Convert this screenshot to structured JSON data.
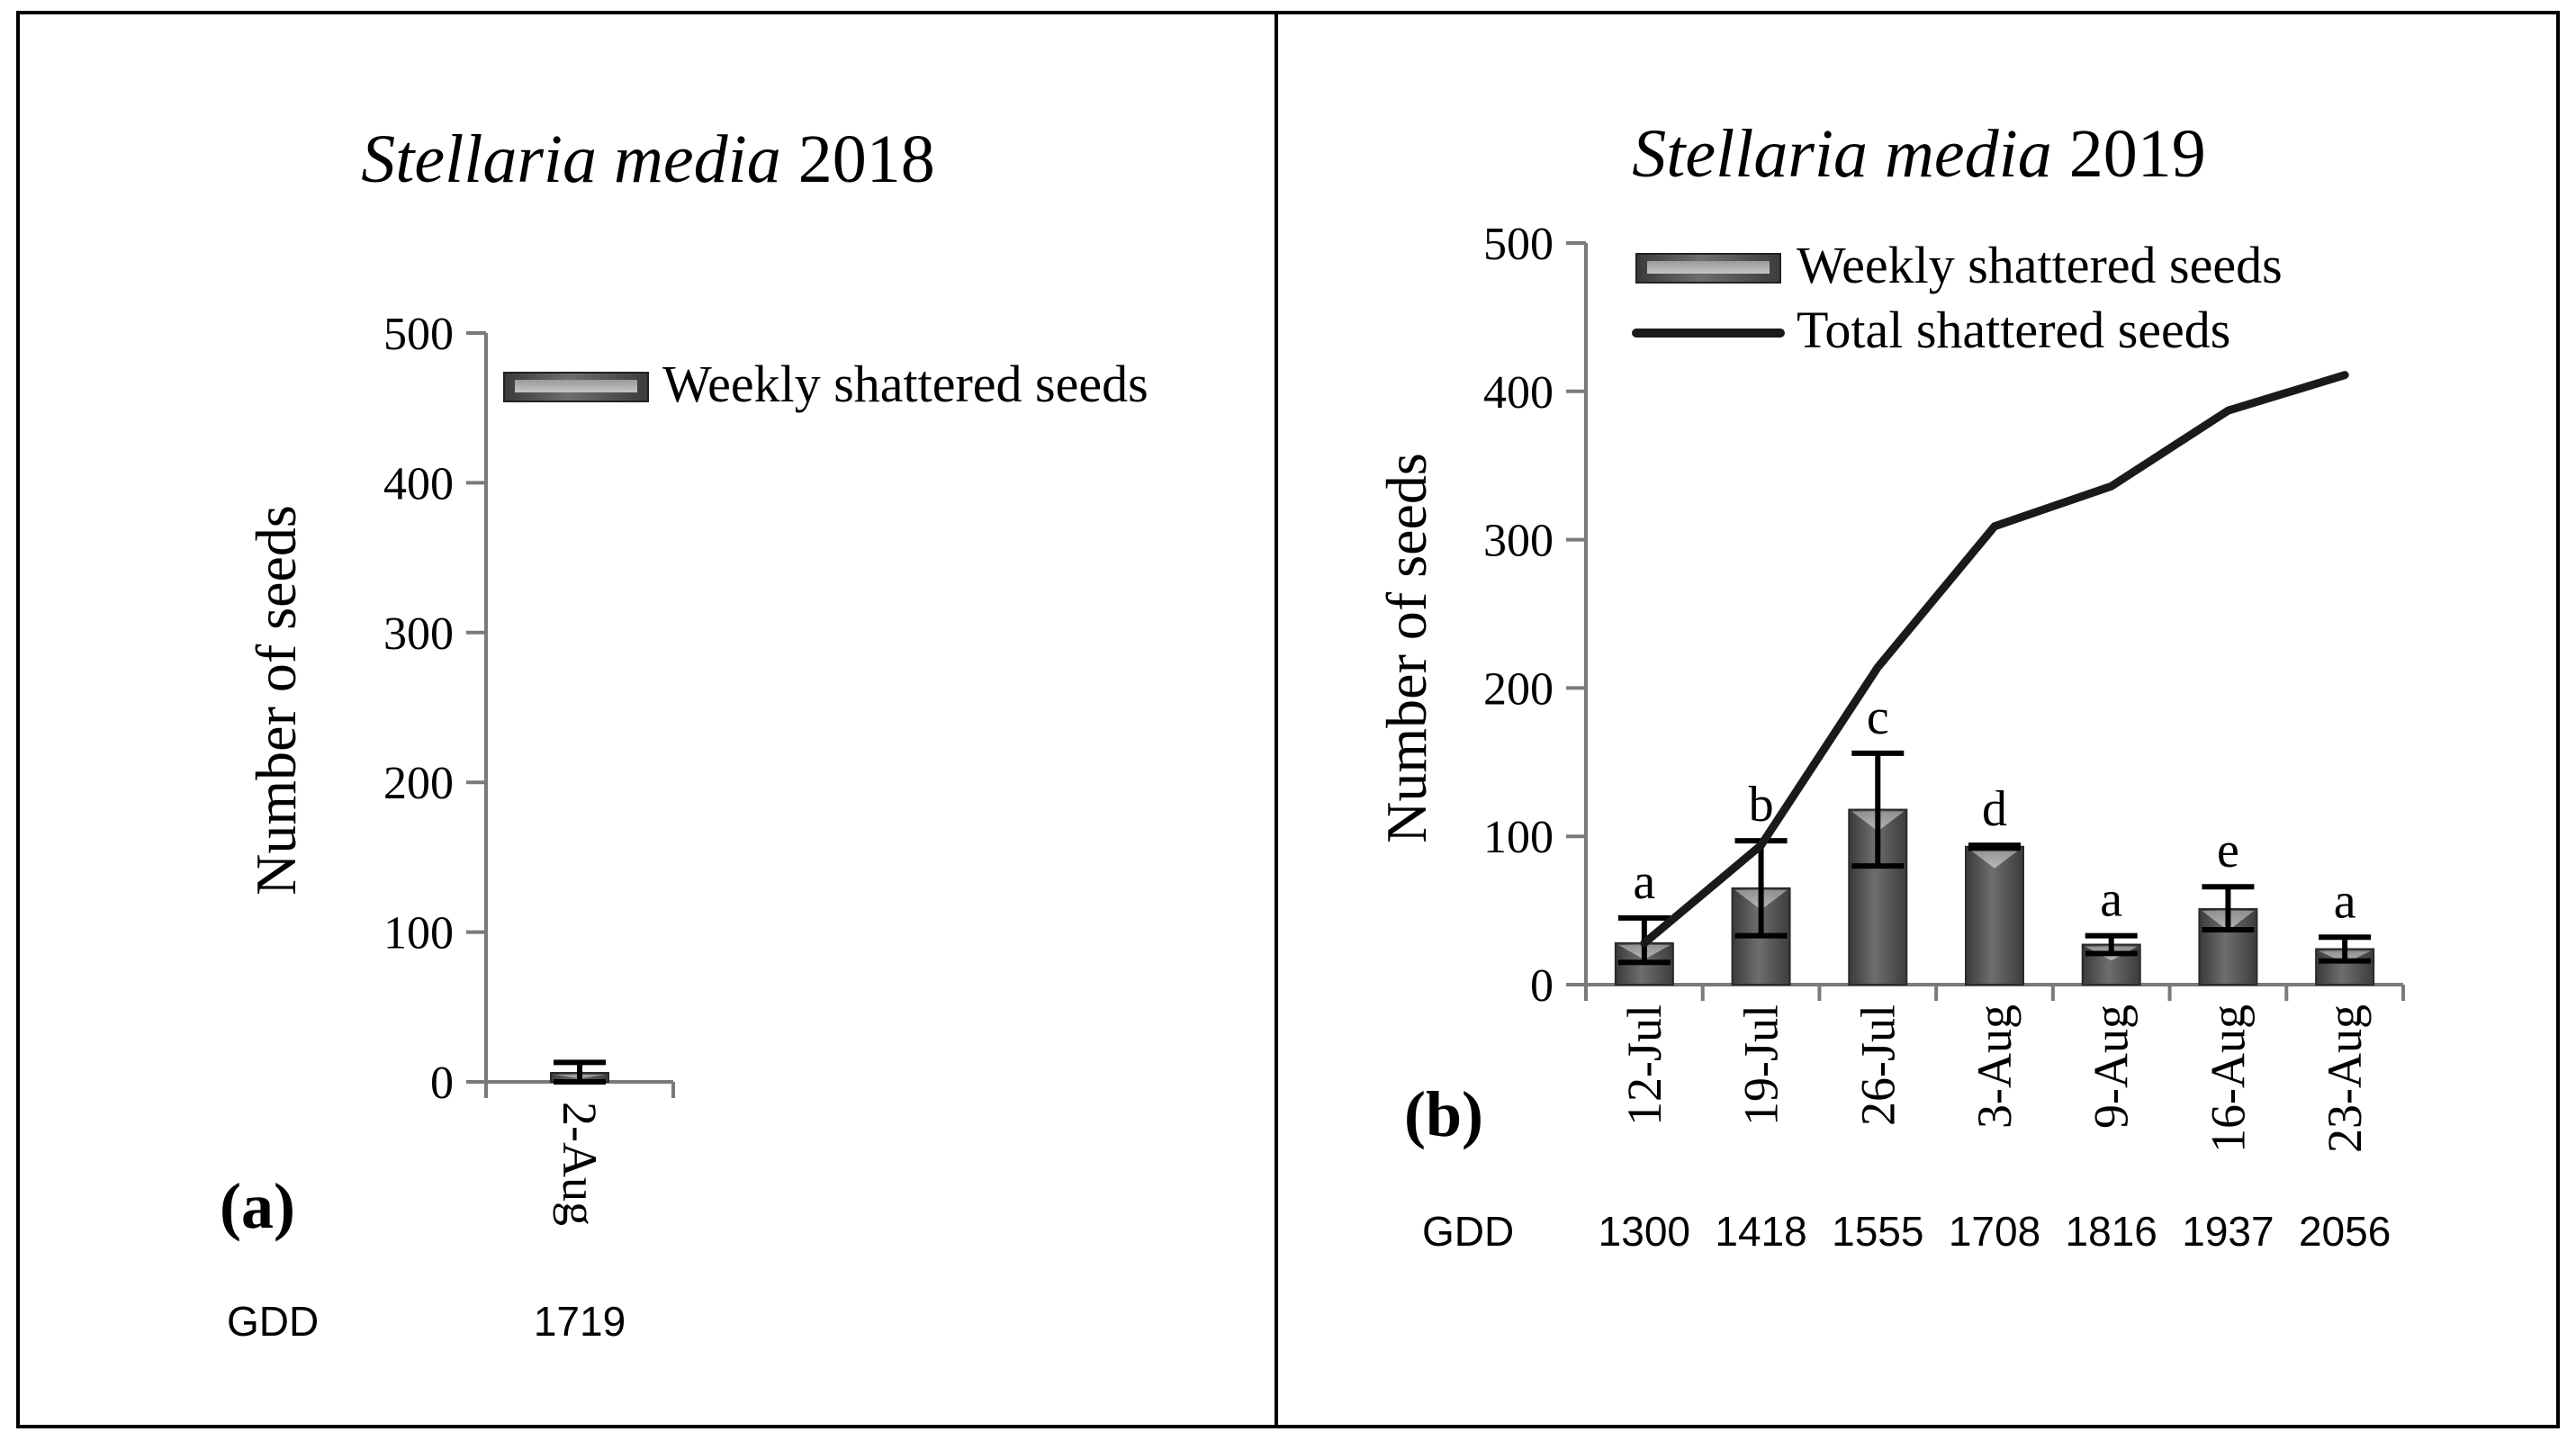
{
  "chart_data": [
    {
      "panel_label": "(a)",
      "type": "bar",
      "title_italic": "Stellaria media",
      "title_year": "2018",
      "ylabel": "Number of seeds",
      "xlabel": "",
      "ylim": [
        0,
        500
      ],
      "yticks": [
        "0",
        "100",
        "200",
        "300",
        "400",
        "500"
      ],
      "categories": [
        "2-Aug"
      ],
      "gdd_label": "GDD",
      "gdd": [
        "1719"
      ],
      "series": [
        {
          "name": "Weekly shattered seeds",
          "kind": "bar",
          "values": [
            6
          ],
          "err_low": [
            0
          ],
          "err_high": [
            13
          ]
        }
      ],
      "letters": [],
      "grid": false,
      "legend_position": "top-right"
    },
    {
      "panel_label": "(b)",
      "type": "bar",
      "title_italic": "Stellaria media",
      "title_year": "2019",
      "ylabel": "Number of seeds",
      "xlabel": "",
      "ylim": [
        0,
        500
      ],
      "yticks": [
        "0",
        "100",
        "200",
        "300",
        "400",
        "500"
      ],
      "categories": [
        "12-Jul",
        "19-Jul",
        "26-Jul",
        "3-Aug",
        "9-Aug",
        "16-Aug",
        "23-Aug"
      ],
      "gdd_label": "GDD",
      "gdd": [
        "1300",
        "1418",
        "1555",
        "1708",
        "1816",
        "1937",
        "2056"
      ],
      "series": [
        {
          "name": "Weekly shattered seeds",
          "kind": "bar",
          "values": [
            28,
            65,
            118,
            93,
            27,
            51,
            24
          ],
          "err_low": [
            15,
            33,
            80,
            92,
            21,
            37,
            16
          ],
          "err_high": [
            45,
            97,
            156,
            94,
            33,
            66,
            32
          ]
        },
        {
          "name": "Total shattered seeds",
          "kind": "line",
          "values": [
            28,
            94,
            214,
            309,
            336,
            387,
            411
          ]
        }
      ],
      "letters": [
        "a",
        "b",
        "c",
        "d",
        "a",
        "e",
        "a"
      ],
      "grid": false,
      "legend_position": "top-left"
    }
  ]
}
